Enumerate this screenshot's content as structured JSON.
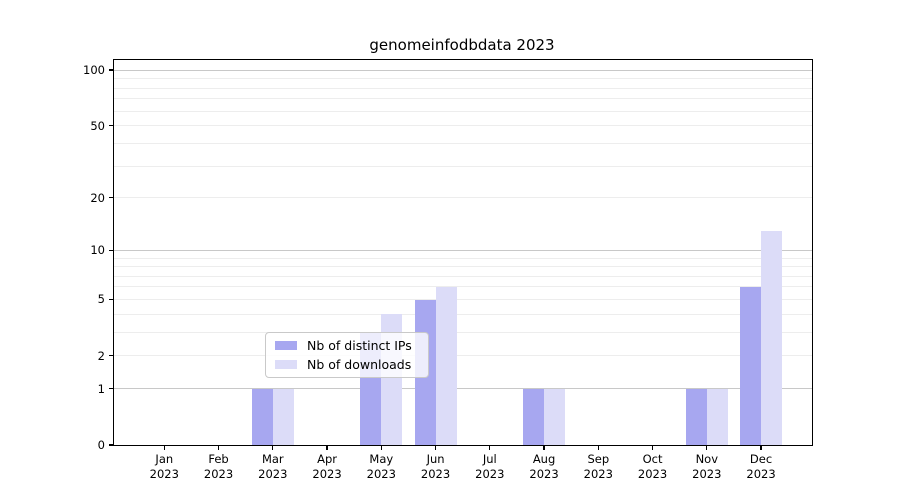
{
  "title": "genomeinfodbdata 2023",
  "legend": {
    "items": [
      {
        "label": "Nb of distinct IPs",
        "color": "#a7a7f0"
      },
      {
        "label": "Nb of downloads",
        "color": "#dcdcf8"
      }
    ]
  },
  "chart_data": {
    "type": "bar",
    "title": "genomeinfodbdata 2023",
    "categories": [
      "Jan 2023",
      "Feb 2023",
      "Mar 2023",
      "Apr 2023",
      "May 2023",
      "Jun 2023",
      "Jul 2023",
      "Aug 2023",
      "Sep 2023",
      "Oct 2023",
      "Nov 2023",
      "Dec 2023"
    ],
    "series": [
      {
        "name": "Nb of distinct IPs",
        "color": "#a7a7f0",
        "values": [
          0,
          0,
          1,
          0,
          3,
          5,
          0,
          1,
          0,
          0,
          1,
          6
        ]
      },
      {
        "name": "Nb of downloads",
        "color": "#dcdcf8",
        "values": [
          0,
          0,
          1,
          0,
          4,
          6,
          0,
          1,
          0,
          0,
          1,
          13
        ]
      }
    ],
    "xlabel": "",
    "ylabel": "",
    "yscale": "log10(1+y)",
    "ylim": [
      0,
      113
    ],
    "yticks": [
      0,
      1,
      2,
      5,
      10,
      20,
      50,
      100
    ],
    "major_gridlines": [
      1,
      10,
      100
    ],
    "minor_gridlines": [
      2,
      3,
      4,
      5,
      6,
      7,
      8,
      9,
      20,
      30,
      40,
      50,
      60,
      70,
      80,
      90
    ],
    "grid": true,
    "legend_position": "lower center",
    "colors": {
      "major_grid": "#c8c8c8",
      "minor_grid": "#ededed",
      "axis": "#000000",
      "background": "#ffffff"
    }
  }
}
